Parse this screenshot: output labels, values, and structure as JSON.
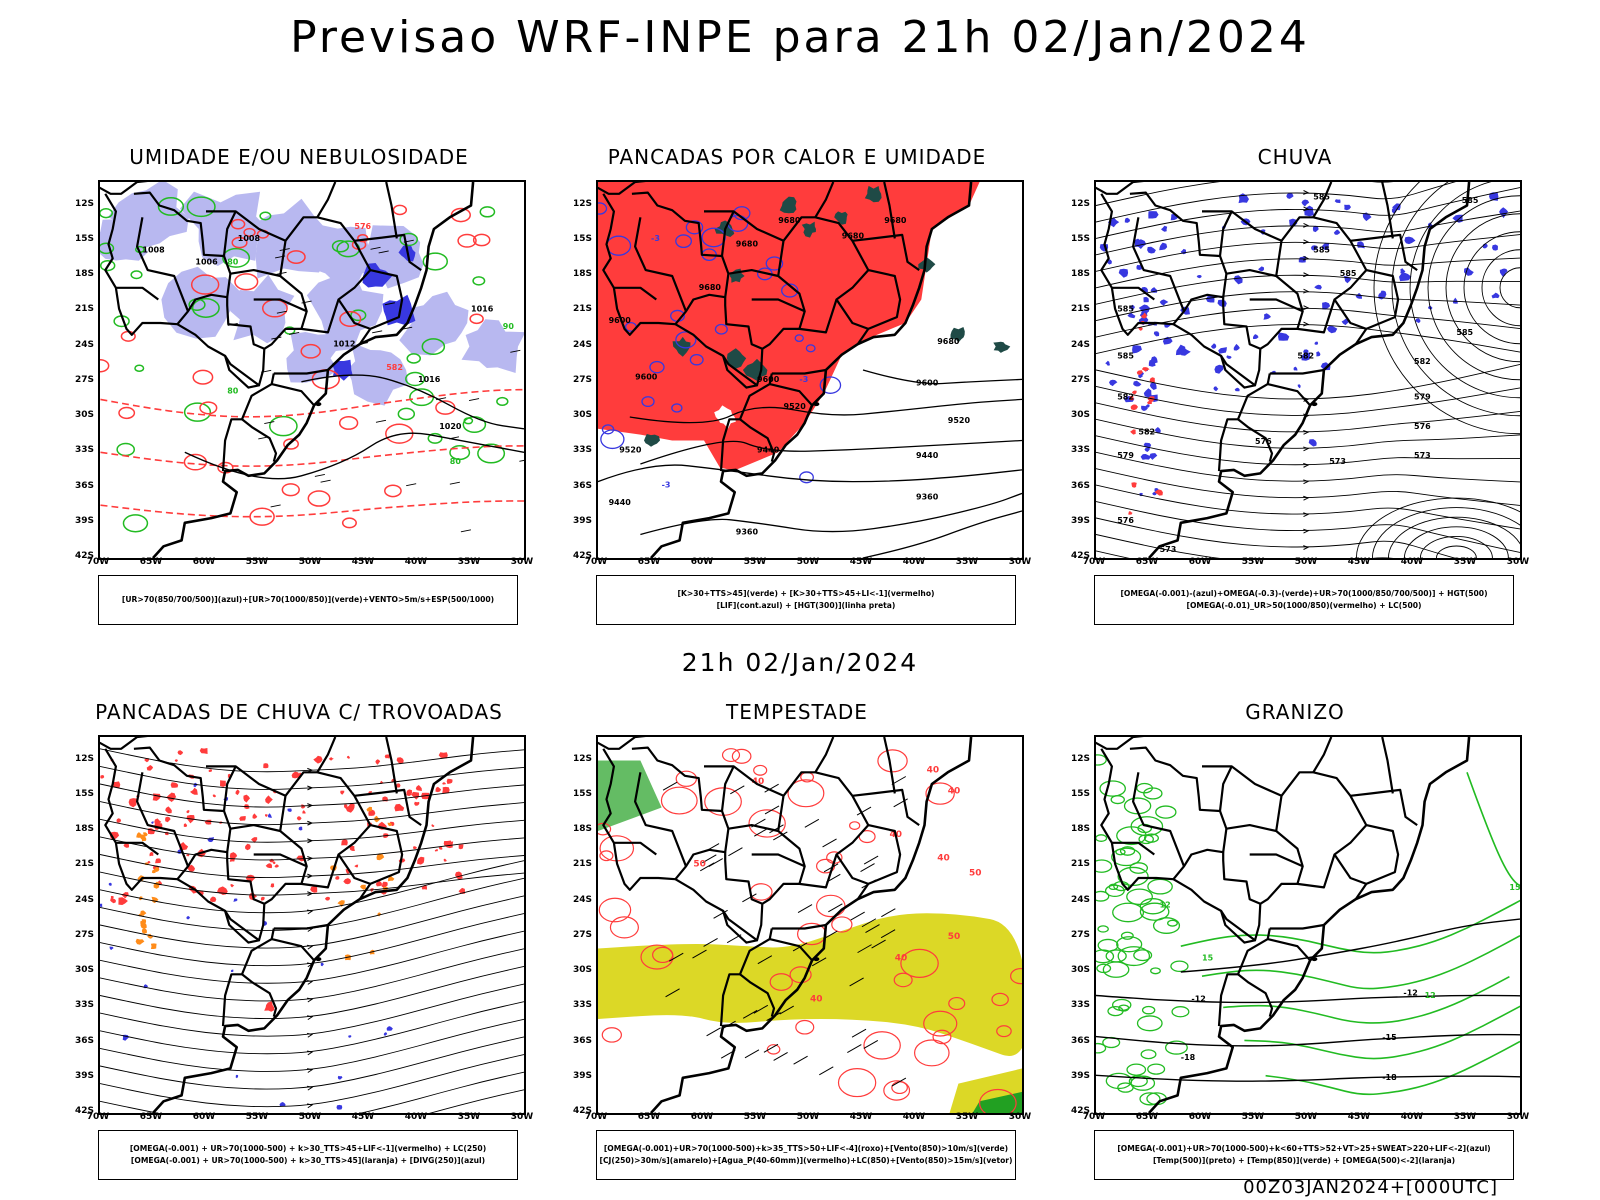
{
  "header": {
    "title": "Previsao WRF-INPE  para 21h 02/Jan/2024"
  },
  "mid_title": "21h 02/Jan/2024",
  "footer": "00Z03JAN2024+[000UTC]",
  "axes": {
    "lat_labels": [
      "12S",
      "15S",
      "18S",
      "21S",
      "24S",
      "27S",
      "30S",
      "33S",
      "36S",
      "39S",
      "42S"
    ],
    "lon_labels": [
      "70W",
      "65W",
      "60W",
      "55W",
      "50W",
      "45W",
      "40W",
      "35W",
      "30W"
    ]
  },
  "colors": {
    "blue_fill": "#b8b8f0",
    "deep_blue": "#3838e0",
    "green": "#22bb22",
    "red": "#ff3c3c",
    "dark_green": "#1f4a46",
    "yellow": "#dcd826",
    "orange": "#ff8c1a",
    "black": "#000000"
  },
  "panels": [
    {
      "title": "UMIDADE E/OU NEBULOSIDADE",
      "legend": [
        "[UR>70(850/700/500)](azul)+[UR>70(1000/850)](verde)+VENTO>5m/s+ESP(500/1000)"
      ],
      "labels": [
        "1008",
        "1006",
        "1008",
        "1012",
        "1016",
        "1020",
        "1024",
        "576",
        "579",
        "582",
        "80",
        "90"
      ]
    },
    {
      "title": "PANCADAS POR CALOR E UMIDADE",
      "legend": [
        "[K>30+TTS>45](verde)  +  [K>30+TTS>45+LI<-1](vermelho)",
        "[LIF](cont.azul)  +  [HGT(300)](linha preta)"
      ],
      "labels": [
        "9680",
        "9600",
        "9520",
        "9440",
        "9360",
        "-3"
      ]
    },
    {
      "title": "CHUVA",
      "legend": [
        "[OMEGA(-0.001)-(azul)+OMEGA(-0.3)-(verde)+UR>70(1000/850/700/500)]  +  HGT(500)",
        "[OMEGA(-0.01)_UR>50(1000/850)(vermelho)  +  LC(500)"
      ],
      "labels": [
        "585",
        "582",
        "579",
        "576",
        "573"
      ]
    },
    {
      "title": "PANCADAS DE CHUVA C/ TROVOADAS",
      "legend": [
        "[OMEGA(-0.001)  +  UR>70(1000-500)  +  k>30_TTS>45+LIF<-1](vermelho)  +  LC(250)",
        "[OMEGA(-0.001)  +  UR>70(1000-500)  +  k>30_TTS>45](laranja)  +  [DIVG(250)](azul)"
      ],
      "labels": []
    },
    {
      "title": "TEMPESTADE",
      "legend": [
        "[OMEGA(-0.001)+UR>70(1000-500)+k>35_TTS>50+LIF<-4](roxo)+[Vento(850)>10m/s](verde)",
        "[CJ(250)>30m/s](amarelo)+[Agua_P(40-60mm)](vermelho)+LC(850)+[Vento(850)>15m/s](vetor)"
      ],
      "labels": [
        "40",
        "50"
      ]
    },
    {
      "title": "GRANIZO",
      "legend": [
        "[OMEGA(-0.001)+UR>70(1000-500)+k<60+TTS>52+VT>25+SWEAT>220+LIF<-2](azul)",
        "[Temp(500)](preto)  +  [Temp(850)](verde)  +  [OMEGA(500)<-2](laranja)"
      ],
      "labels": [
        "-12",
        "-15",
        "-18",
        "12",
        "15"
      ]
    }
  ]
}
